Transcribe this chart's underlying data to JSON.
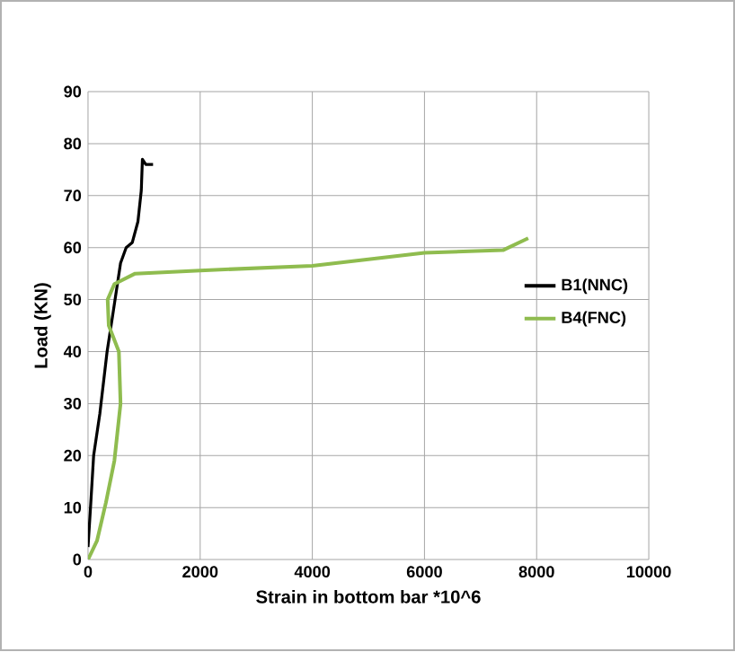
{
  "chart_data": {
    "type": "line",
    "xlabel": "Strain in bottom bar *10^6",
    "ylabel": "Load  (KN)",
    "xlim": [
      0,
      10000
    ],
    "ylim": [
      0,
      90
    ],
    "xticks": [
      0,
      2000,
      4000,
      6000,
      8000,
      10000
    ],
    "yticks": [
      0,
      10,
      20,
      30,
      40,
      50,
      60,
      70,
      80,
      90
    ],
    "grid": true,
    "legend": "right",
    "series": [
      {
        "name": "B1(NNC)",
        "color": "#000000",
        "x": [
          0,
          50,
          100,
          210,
          340,
          440,
          580,
          680,
          790,
          890,
          950,
          970,
          1030,
          1160
        ],
        "values": [
          2.4,
          11,
          20,
          28,
          40,
          47,
          57,
          60,
          61,
          65,
          71,
          77,
          76,
          76
        ]
      },
      {
        "name": "B4(FNC)",
        "color": "#8fbc4f",
        "x": [
          0,
          160,
          320,
          470,
          580,
          550,
          370,
          350,
          470,
          840,
          2000,
          4000,
          6000,
          7400,
          7850
        ],
        "values": [
          0,
          3.6,
          11,
          19,
          30,
          40,
          45,
          50,
          53,
          55,
          55.6,
          56.5,
          59,
          59.5,
          61.8
        ]
      }
    ]
  }
}
